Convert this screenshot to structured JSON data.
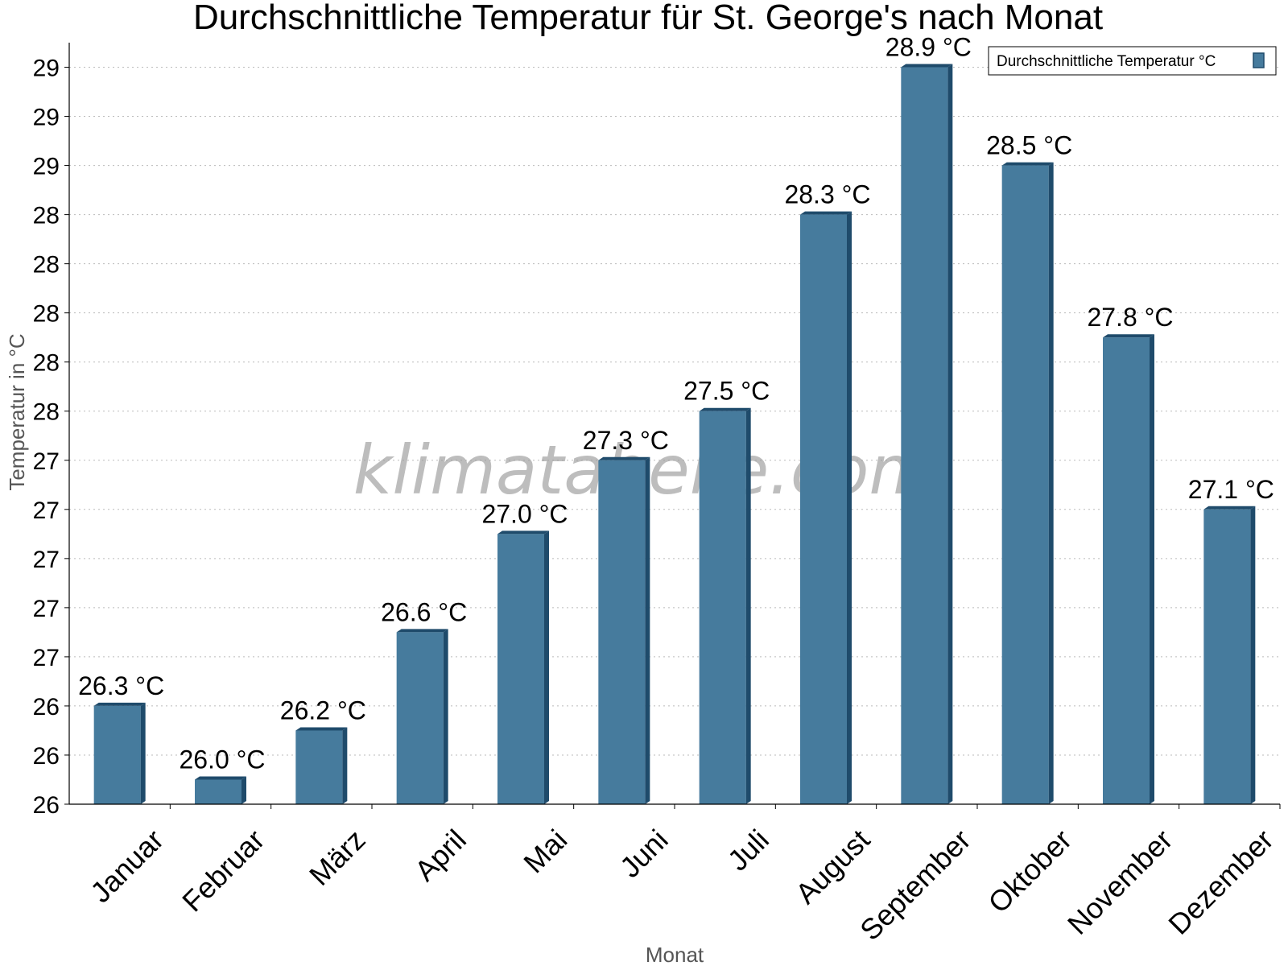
{
  "watermark": "klimatabelle.com",
  "chart_data": {
    "type": "bar",
    "title": "Durchschnittliche Temperatur für St. George's nach Monat",
    "xlabel": "Monat",
    "ylabel": "Temperatur in °C",
    "categories": [
      "Januar",
      "Februar",
      "März",
      "April",
      "Mai",
      "Juni",
      "Juli",
      "August",
      "September",
      "Oktober",
      "November",
      "Dezember"
    ],
    "series": [
      {
        "name": "Durchschnittliche Temperatur °C",
        "values": [
          26.3,
          26.0,
          26.2,
          26.6,
          27.0,
          27.3,
          27.5,
          28.3,
          28.9,
          28.5,
          27.8,
          27.1
        ],
        "labels": [
          "26.3 °C",
          "26.0 °C",
          "26.2 °C",
          "26.6 °C",
          "27.0 °C",
          "27.3 °C",
          "27.5 °C",
          "28.3 °C",
          "28.9 °C",
          "28.5 °C",
          "27.8 °C",
          "27.1 °C"
        ]
      }
    ],
    "ylim": [
      25.9,
      29.0
    ],
    "yticks": [
      25.9,
      26.1,
      26.3,
      26.5,
      26.7,
      26.9,
      27.1,
      27.3,
      27.5,
      27.7,
      27.9,
      28.1,
      28.3,
      28.5,
      28.7,
      28.9
    ],
    "ytick_labels": [
      "26",
      "26",
      "26",
      "27",
      "27",
      "27",
      "27",
      "27",
      "28",
      "28",
      "28",
      "28",
      "28",
      "29",
      "29",
      "29"
    ],
    "grid": true,
    "legend_position": "top-right",
    "colors": {
      "bar": "#467B9D",
      "bar_side": "#1F4B6B",
      "grid": "#bbbbbb"
    }
  }
}
